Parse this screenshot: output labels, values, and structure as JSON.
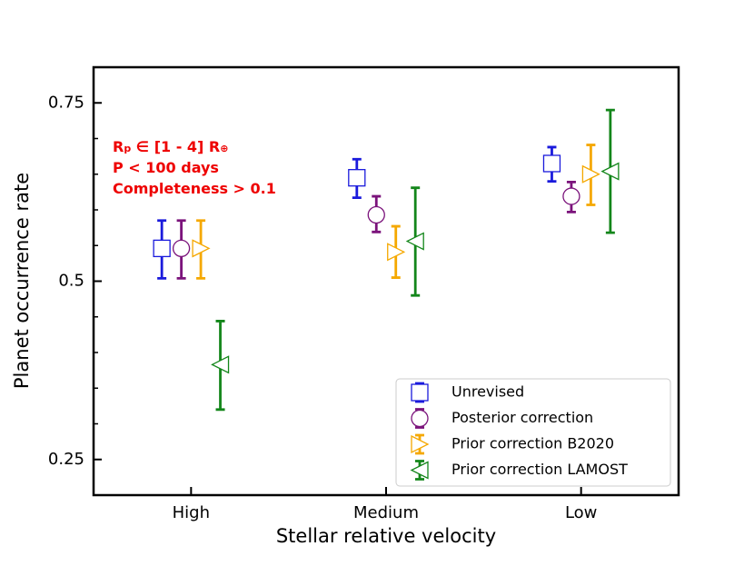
{
  "chart_data": {
    "type": "errorbar",
    "x_label": "Stellar relative velocity",
    "y_label": "Planet occurrence rate",
    "categories": [
      "High",
      "Medium",
      "Low"
    ],
    "ylim": [
      0.2,
      0.8
    ],
    "yticks": [
      0.25,
      0.5,
      0.75
    ],
    "yminorticks": [
      0.3,
      0.35,
      0.4,
      0.45,
      0.55,
      0.6,
      0.65,
      0.7
    ],
    "annotation": {
      "color": "#ee0000",
      "lines": [
        [
          "R",
          "p",
          " ∈ [1 - 4] R",
          "⊕"
        ],
        [
          "P < 100 days"
        ],
        [
          "Completeness > 0.1"
        ]
      ]
    },
    "legend": "lower right",
    "series": [
      {
        "name": "Unrevised",
        "color": "#1a1adc",
        "marker": "square",
        "offset": -0.15,
        "values": [
          0.546,
          0.645,
          0.665
        ],
        "err_minus": [
          0.042,
          0.028,
          0.025
        ],
        "err_plus": [
          0.039,
          0.026,
          0.023
        ]
      },
      {
        "name": "Posterior correction",
        "color": "#7b137b",
        "marker": "circle",
        "offset": -0.05,
        "values": [
          0.546,
          0.593,
          0.619
        ],
        "err_minus": [
          0.042,
          0.024,
          0.022
        ],
        "err_plus": [
          0.039,
          0.026,
          0.02
        ]
      },
      {
        "name": "Prior correction B2020",
        "color": "#f5a800",
        "marker": "triangle-right",
        "offset": 0.05,
        "values": [
          0.546,
          0.541,
          0.65
        ],
        "err_minus": [
          0.042,
          0.036,
          0.043
        ],
        "err_plus": [
          0.039,
          0.036,
          0.041
        ]
      },
      {
        "name": "Prior correction LAMOST",
        "color": "#13861a",
        "marker": "triangle-left",
        "offset": 0.15,
        "values": [
          0.383,
          0.556,
          0.654
        ],
        "err_minus": [
          0.063,
          0.076,
          0.086
        ],
        "err_plus": [
          0.061,
          0.075,
          0.086
        ]
      }
    ]
  }
}
